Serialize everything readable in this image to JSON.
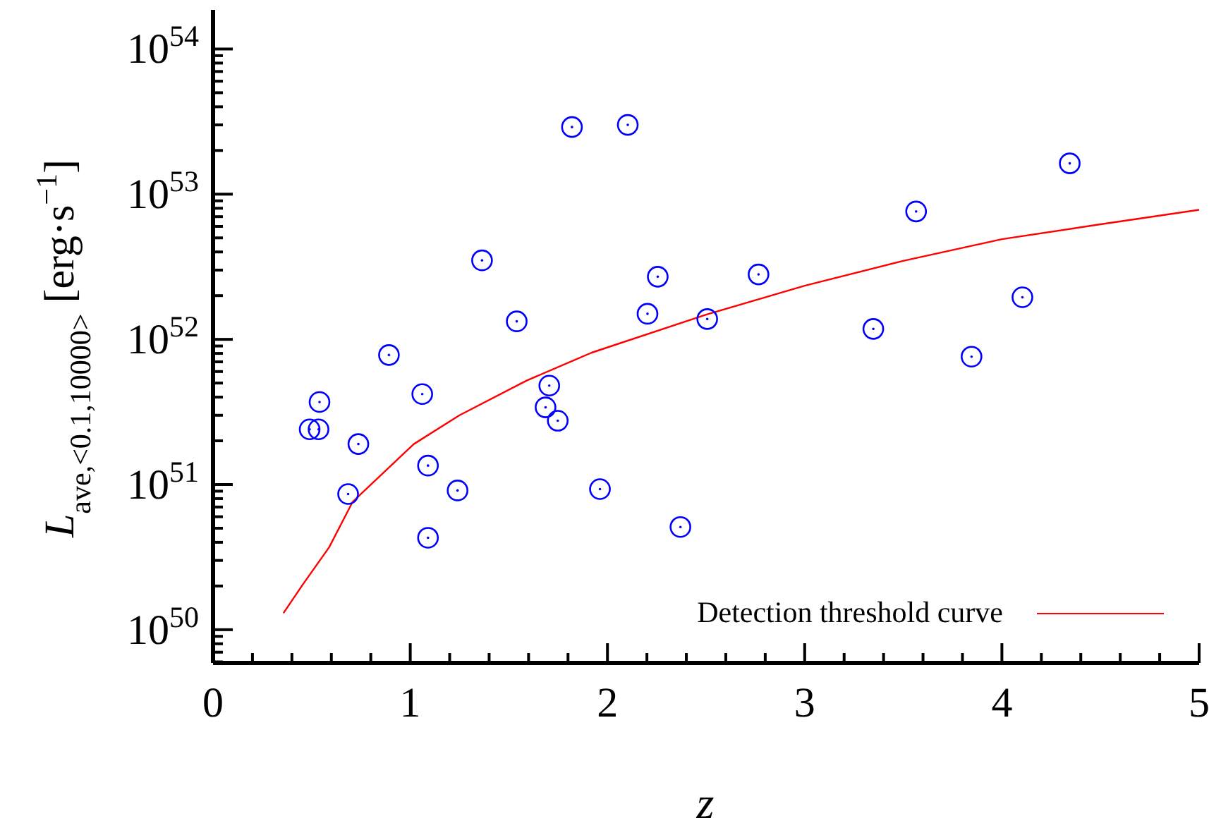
{
  "chart_data": {
    "type": "scatter",
    "xlabel": "z",
    "ylabel": "L$_{ave,<0.1,10000>}$ [erg·s$^{−1}$]",
    "log": "y",
    "marker": "circle",
    "legend": "bottom right",
    "xlim": [
      0,
      5
    ],
    "xticks": [
      0,
      {
        "value": 0.2,
        "label": null
      },
      {
        "value": 0.4,
        "label": null
      },
      {
        "value": 0.6,
        "label": null
      },
      {
        "value": 0.8,
        "label": null
      },
      1,
      {
        "value": 1.2,
        "label": null
      },
      {
        "value": 1.4,
        "label": null
      },
      {
        "value": 1.6,
        "label": null
      },
      {
        "value": 1.8,
        "label": null
      },
      2,
      {
        "value": 2.2,
        "label": null
      },
      {
        "value": 2.4,
        "label": null
      },
      {
        "value": 2.6,
        "label": null
      },
      {
        "value": 2.8,
        "label": null
      },
      3,
      {
        "value": 3.2,
        "label": null
      },
      {
        "value": 3.4,
        "label": null
      },
      {
        "value": 3.6,
        "label": null
      },
      {
        "value": 3.8,
        "label": null
      },
      4,
      {
        "value": 4.2,
        "label": null
      },
      {
        "value": 4.4,
        "label": null
      },
      {
        "value": 4.6,
        "label": null
      },
      {
        "value": 4.8,
        "label": null
      },
      5
    ],
    "ylim": [
      5.9e+49,
      1.86e+54
    ],
    "yticks": [
      {
        "value": 6e+49,
        "label": null
      },
      {
        "value": 7e+49,
        "label": null
      },
      {
        "value": 8e+49,
        "label": null
      },
      {
        "value": 9e+49,
        "label": null
      },
      {
        "value": 1e+50,
        "label": "10$^{50}$"
      },
      {
        "value": 2e+50,
        "label": null
      },
      {
        "value": 3e+50,
        "label": null
      },
      {
        "value": 4e+50,
        "label": null
      },
      {
        "value": 5e+50,
        "label": null
      },
      {
        "value": 6e+50,
        "label": null
      },
      {
        "value": 7e+50,
        "label": null
      },
      {
        "value": 8e+50,
        "label": null
      },
      {
        "value": 9e+50,
        "label": null
      },
      {
        "value": 1e+51,
        "label": "10$^{51}$"
      },
      {
        "value": 2e+51,
        "label": null
      },
      {
        "value": 3e+51,
        "label": null
      },
      {
        "value": 4e+51,
        "label": null
      },
      {
        "value": 5e+51,
        "label": null
      },
      {
        "value": 6e+51,
        "label": null
      },
      {
        "value": 7e+51,
        "label": null
      },
      {
        "value": 8e+51,
        "label": null
      },
      {
        "value": 9e+51,
        "label": null
      },
      {
        "value": 1e+52,
        "label": "10$^{52}$"
      },
      {
        "value": 2e+52,
        "label": null
      },
      {
        "value": 3e+52,
        "label": null
      },
      {
        "value": 4e+52,
        "label": null
      },
      {
        "value": 5e+52,
        "label": null
      },
      {
        "value": 6e+52,
        "label": null
      },
      {
        "value": 7e+52,
        "label": null
      },
      {
        "value": 8e+52,
        "label": null
      },
      {
        "value": 9e+52,
        "label": null
      },
      {
        "value": 1e+53,
        "label": "10$^{53}$"
      },
      {
        "value": 2e+53,
        "label": null
      },
      {
        "value": 3e+53,
        "label": null
      },
      {
        "value": 4e+53,
        "label": null
      },
      {
        "value": 5e+53,
        "label": null
      },
      {
        "value": 6e+53,
        "label": null
      },
      {
        "value": 7e+53,
        "label": null
      },
      {
        "value": 8e+53,
        "label": null
      },
      {
        "value": 9e+53,
        "label": null
      },
      {
        "value": 1e+54,
        "label": "10$^{54}$"
      }
    ],
    "series": [
      {
        "color": "#0000ff",
        "x": [
          0.49,
          0.54,
          0.535,
          0.737,
          0.685,
          0.892,
          1.061,
          1.09,
          1.09,
          1.24,
          1.364,
          1.54,
          1.705,
          1.686,
          1.748,
          1.82,
          1.962,
          2.103,
          2.203,
          2.255,
          2.506,
          2.766,
          2.37,
          3.348,
          3.565,
          3.846,
          4.104,
          4.344
        ],
        "values": [
          2.4e+51,
          3.7e+51,
          2.4e+51,
          1.9e+51,
          8.6e+50,
          7.8e+51,
          4.2e+51,
          1.35e+51,
          4.3e+50,
          9.1e+50,
          3.5e+52,
          1.33e+52,
          4.8e+51,
          3.4e+51,
          2.75e+51,
          2.9e+53,
          9.3e+50,
          3e+53,
          1.5e+52,
          2.7e+52,
          1.38e+52,
          2.8e+52,
          5.1e+50,
          1.18e+52,
          7.6e+52,
          7.6e+51,
          1.95e+52,
          1.63e+53
        ]
      },
      {
        "type": "line",
        "name": "Detection threshold curve",
        "color": "#ff0000",
        "marker": "none",
        "x": [
          0.357,
          0.45,
          0.589,
          0.708,
          1.018,
          1.25,
          1.59,
          1.92,
          2.5,
          3.0,
          3.5,
          4.0,
          4.5,
          5.0
        ],
        "values": [
          1.3e+50,
          2e+50,
          3.7e+50,
          7.6e+50,
          1.9e+51,
          3e+51,
          5.2e+51,
          8.1e+51,
          1.48e+52,
          2.34e+52,
          3.47e+52,
          4.9e+52,
          6.2e+52,
          7.8e+52
        ]
      }
    ]
  }
}
